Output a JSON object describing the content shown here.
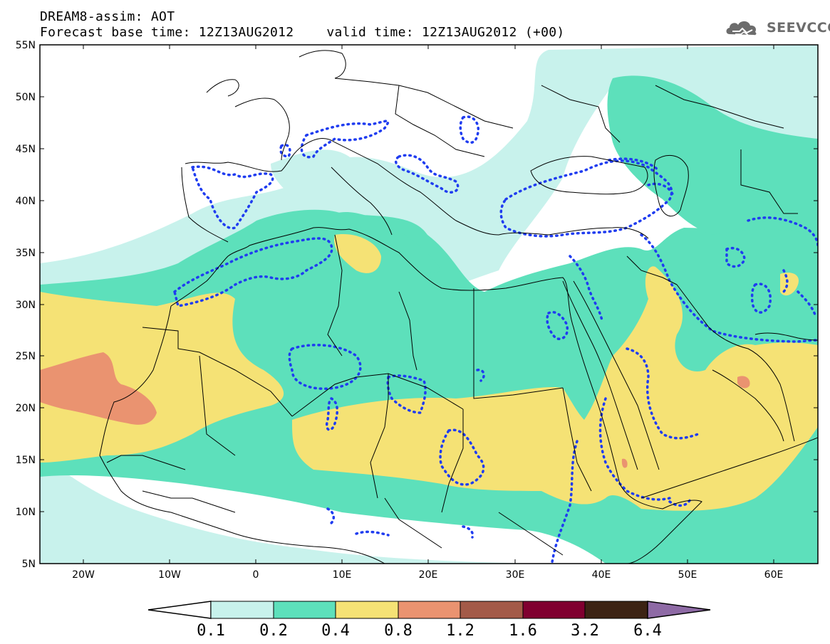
{
  "header": {
    "title_line1": "DREAM8-assim: AOT",
    "forecast_base": "Forecast base time: 12Z13AUG2012",
    "valid_time": "valid time: 12Z13AUG2012 (+00)"
  },
  "logo": {
    "text": "SEEVCCC",
    "icon": "cloud-logo-icon",
    "color": "#6c6c6c"
  },
  "map": {
    "projection": "lat-lon",
    "lon_range": [
      -25,
      65
    ],
    "lat_range": [
      5,
      55
    ],
    "y_ticks": [
      "55N",
      "50N",
      "45N",
      "40N",
      "35N",
      "30N",
      "25N",
      "20N",
      "15N",
      "10N",
      "5N"
    ],
    "x_ticks": [
      "20W",
      "10W",
      "0",
      "10E",
      "20E",
      "30E",
      "40E",
      "50E",
      "60E"
    ],
    "contour_line": {
      "style": "dotted",
      "color": "#1f3cf0"
    }
  },
  "colorbar": {
    "labels": [
      "0.1",
      "0.2",
      "0.4",
      "0.8",
      "1.2",
      "1.6",
      "3.2",
      "6.4"
    ],
    "colors": [
      "#c8f2ec",
      "#5de0bb",
      "#f5e275",
      "#ea9370",
      "#a35a48",
      "#800030",
      "#3c2314",
      "#8e6aa5"
    ],
    "under_color": "#ffffff"
  }
}
